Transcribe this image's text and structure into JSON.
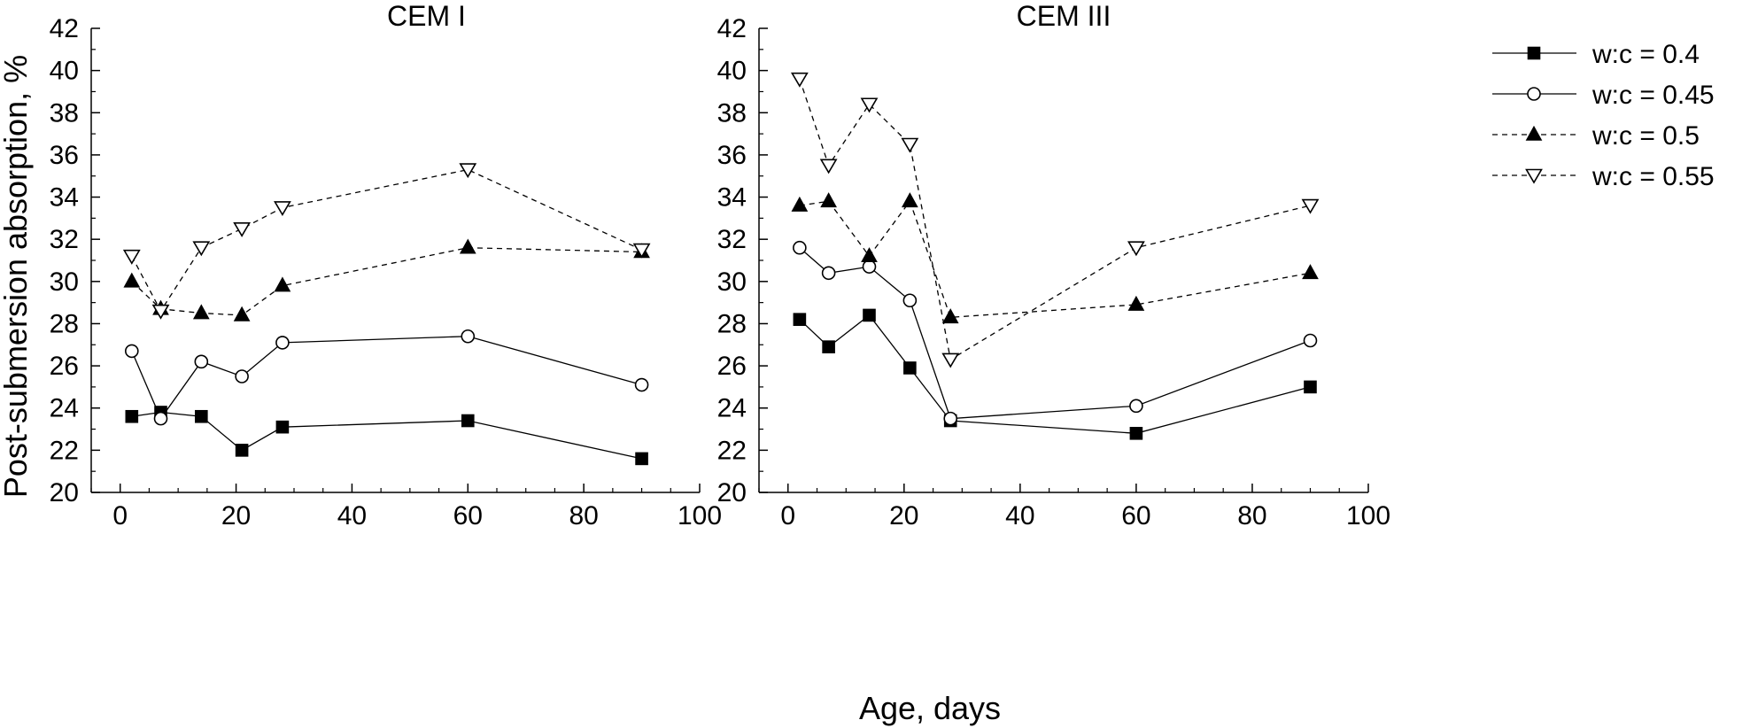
{
  "figure": {
    "xlabel": "Age, days",
    "ylabel": "Post-submersion absorption, %"
  },
  "legend": [
    {
      "label": "w:c = 0.4",
      "marker": "square-filled",
      "line": "solid"
    },
    {
      "label": "w:c = 0.45",
      "marker": "circle-open",
      "line": "solid"
    },
    {
      "label": "w:c = 0.5",
      "marker": "triangle-up-filled",
      "line": "dashed"
    },
    {
      "label": "w:c = 0.55",
      "marker": "triangle-down-open",
      "line": "dashed"
    }
  ],
  "chart_data": [
    {
      "type": "line",
      "title": "CEM I",
      "xlim": [
        -5,
        100
      ],
      "ylim": [
        20,
        42
      ],
      "xticks": [
        0,
        20,
        40,
        60,
        80,
        100
      ],
      "yticks": [
        20,
        22,
        24,
        26,
        28,
        30,
        32,
        34,
        36,
        38,
        40,
        42
      ],
      "grid": false,
      "series": [
        {
          "name": "w:c = 0.4",
          "x": [
            2,
            7,
            14,
            21,
            28,
            60,
            90
          ],
          "values": [
            23.6,
            23.8,
            23.6,
            22.0,
            23.1,
            23.4,
            21.6
          ]
        },
        {
          "name": "w:c = 0.45",
          "x": [
            2,
            7,
            14,
            21,
            28,
            60,
            90
          ],
          "values": [
            26.7,
            23.5,
            26.2,
            25.5,
            27.1,
            27.4,
            25.1
          ]
        },
        {
          "name": "w:c = 0.5",
          "x": [
            2,
            7,
            14,
            21,
            28,
            60,
            90
          ],
          "values": [
            30.0,
            28.7,
            28.5,
            28.4,
            29.8,
            31.6,
            31.4
          ]
        },
        {
          "name": "w:c = 0.55",
          "x": [
            2,
            7,
            14,
            21,
            28,
            60,
            90
          ],
          "values": [
            31.2,
            28.6,
            31.6,
            32.5,
            33.5,
            35.3,
            31.5
          ]
        }
      ]
    },
    {
      "type": "line",
      "title": "CEM III",
      "xlim": [
        -5,
        100
      ],
      "ylim": [
        20,
        42
      ],
      "xticks": [
        0,
        20,
        40,
        60,
        80,
        100
      ],
      "yticks": [
        20,
        22,
        24,
        26,
        28,
        30,
        32,
        34,
        36,
        38,
        40,
        42
      ],
      "grid": false,
      "series": [
        {
          "name": "w:c = 0.4",
          "x": [
            2,
            7,
            14,
            21,
            28,
            60,
            90
          ],
          "values": [
            28.2,
            26.9,
            28.4,
            25.9,
            23.4,
            22.8,
            25.0
          ]
        },
        {
          "name": "w:c = 0.45",
          "x": [
            2,
            7,
            14,
            21,
            28,
            60,
            90
          ],
          "values": [
            31.6,
            30.4,
            30.7,
            29.1,
            23.5,
            24.1,
            27.2
          ]
        },
        {
          "name": "w:c = 0.5",
          "x": [
            2,
            7,
            14,
            21,
            28,
            60,
            90
          ],
          "values": [
            33.6,
            33.8,
            31.2,
            33.8,
            28.3,
            28.9,
            30.4
          ]
        },
        {
          "name": "w:c = 0.55",
          "x": [
            2,
            7,
            14,
            21,
            28,
            60,
            90
          ],
          "values": [
            39.6,
            35.5,
            38.4,
            36.5,
            26.3,
            31.6,
            33.6
          ]
        }
      ]
    }
  ]
}
